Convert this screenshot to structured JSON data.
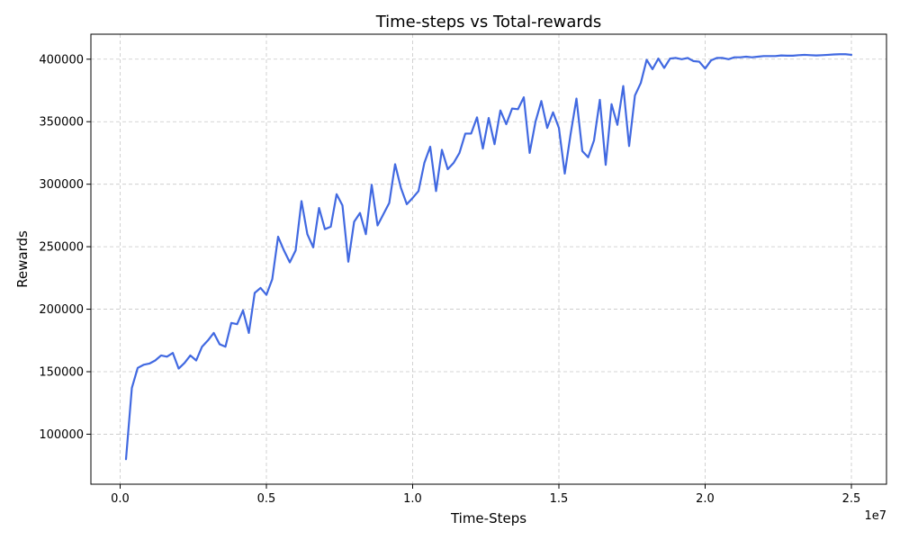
{
  "chart_data": {
    "type": "line",
    "title": "Time-steps vs Total-rewards",
    "xlabel": "Time-Steps",
    "ylabel": "Rewards",
    "x_offset_label": "1e7",
    "xlim": [
      -1000000,
      26200000
    ],
    "ylim": [
      60000,
      420000
    ],
    "xticks": [
      0,
      5000000,
      10000000,
      15000000,
      20000000,
      25000000
    ],
    "xtick_labels": [
      "0.0",
      "0.5",
      "1.0",
      "1.5",
      "2.0",
      "2.5"
    ],
    "yticks": [
      100000,
      150000,
      200000,
      250000,
      300000,
      350000,
      400000
    ],
    "ytick_labels": [
      "100000",
      "150000",
      "200000",
      "250000",
      "300000",
      "350000",
      "400000"
    ],
    "grid": true,
    "line_color": "#4169e1",
    "series": [
      {
        "x": [
          200000,
          400000,
          600000,
          800000,
          1000000,
          1200000,
          1400000,
          1600000,
          1800000,
          2000000,
          2200000,
          2400000,
          2600000,
          2800000,
          3000000,
          3200000,
          3400000,
          3600000,
          3800000,
          4000000,
          4200000,
          4400000,
          4600000,
          4800000,
          5000000,
          5200000,
          5400000,
          5600000,
          5800000,
          6000000,
          6200000,
          6400000,
          6600000,
          6800000,
          7000000,
          7200000,
          7400000,
          7600000,
          7800000,
          8000000,
          8200000,
          8400000,
          8600000,
          8800000,
          9000000,
          9200000,
          9400000,
          9600000,
          9800000,
          10000000,
          10200000,
          10400000,
          10600000,
          10800000,
          11000000,
          11200000,
          11400000,
          11600000,
          11800000,
          12000000,
          12200000,
          12400000,
          12600000,
          12800000,
          13000000,
          13200000,
          13400000,
          13600000,
          13800000,
          14000000,
          14200000,
          14400000,
          14600000,
          14800000,
          15000000,
          15200000,
          15400000,
          15600000,
          15800000,
          16000000,
          16200000,
          16400000,
          16600000,
          16800000,
          17000000,
          17200000,
          17400000,
          17600000,
          17800000,
          18000000,
          18200000,
          18400000,
          18600000,
          18800000,
          19000000,
          19200000,
          19400000,
          19600000,
          19800000,
          20000000,
          20200000,
          20400000,
          20600000,
          20800000,
          21000000,
          21200000,
          21400000,
          21600000,
          21800000,
          22000000,
          22200000,
          22400000,
          22600000,
          22800000,
          23000000,
          23200000,
          23400000,
          23600000,
          23800000,
          24000000,
          24200000,
          24400000,
          24600000,
          24800000,
          25000000
        ],
        "y": [
          80000,
          137000,
          153000,
          155500,
          156500,
          159000,
          163000,
          162000,
          165000,
          152500,
          157000,
          163000,
          159000,
          170000,
          175000,
          181000,
          172000,
          170000,
          189000,
          188000,
          199000,
          181000,
          213000,
          217000,
          211500,
          224000,
          258000,
          247000,
          237500,
          247000,
          286500,
          260000,
          249500,
          281000,
          264000,
          266000,
          292000,
          283000,
          238000,
          270000,
          277000,
          260000,
          299500,
          267000,
          276000,
          285000,
          316000,
          297000,
          284000,
          289000,
          294500,
          317000,
          330000,
          294500,
          327500,
          312000,
          317000,
          325000,
          340500,
          340500,
          353500,
          328500,
          353000,
          332000,
          359000,
          348000,
          360500,
          360000,
          369500,
          325000,
          350000,
          366500,
          345000,
          357500,
          345000,
          308500,
          340000,
          368500,
          326500,
          321500,
          335000,
          367500,
          315500,
          364000,
          347500,
          378500,
          330500,
          371000,
          381000,
          399500,
          392000,
          400500,
          393000,
          400500,
          401000,
          400000,
          401000,
          398500,
          398000,
          392500,
          399000,
          401000,
          401000,
          400000,
          401500,
          401500,
          402000,
          401500,
          402000,
          402500,
          402500,
          402500,
          403000,
          402800,
          402800,
          403200,
          403500,
          403200,
          403000,
          403200,
          403500,
          403800,
          404000,
          404000,
          403500
        ]
      }
    ]
  }
}
